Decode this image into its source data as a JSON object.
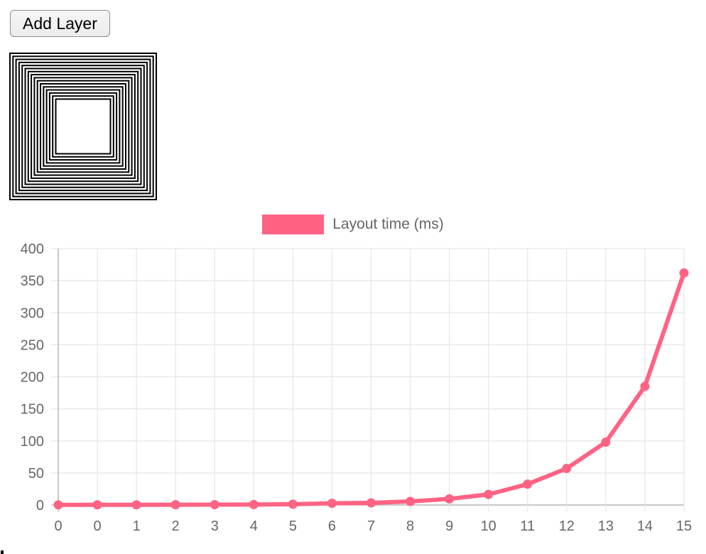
{
  "toolbar": {
    "add_layer_label": "Add Layer"
  },
  "illustration": {
    "name": "nested-squares-pattern",
    "rings": 16,
    "size": 208,
    "ring_color": "#000000",
    "background": "#ffffff"
  },
  "chart_data": {
    "type": "line",
    "title": "",
    "xlabel": "",
    "ylabel": "",
    "categories": [
      "0",
      "0",
      "1",
      "2",
      "3",
      "4",
      "5",
      "6",
      "7",
      "8",
      "9",
      "10",
      "11",
      "12",
      "13",
      "14",
      "15"
    ],
    "series": [
      {
        "name": "Layout time (ms)",
        "color": "#FF6384",
        "values": [
          0.2,
          0.3,
          0.3,
          0.4,
          0.5,
          0.7,
          1.2,
          2.6,
          3.3,
          5.5,
          9.5,
          16.5,
          32.5,
          57,
          98,
          185,
          362
        ]
      }
    ],
    "ylim": [
      0,
      400
    ],
    "ytick_step": 50,
    "yticks": [
      "0",
      "50",
      "100",
      "150",
      "200",
      "250",
      "300",
      "350",
      "400"
    ],
    "grid": true,
    "legend_position": "top",
    "line_width": 6,
    "point_radius": 6.5
  },
  "colors": {
    "accent": "#FF6384",
    "grid_line": "#e6e6e6",
    "zero_line": "#b5b5b5",
    "tick_label": "#666666",
    "button_border": "#8c8c8c"
  }
}
